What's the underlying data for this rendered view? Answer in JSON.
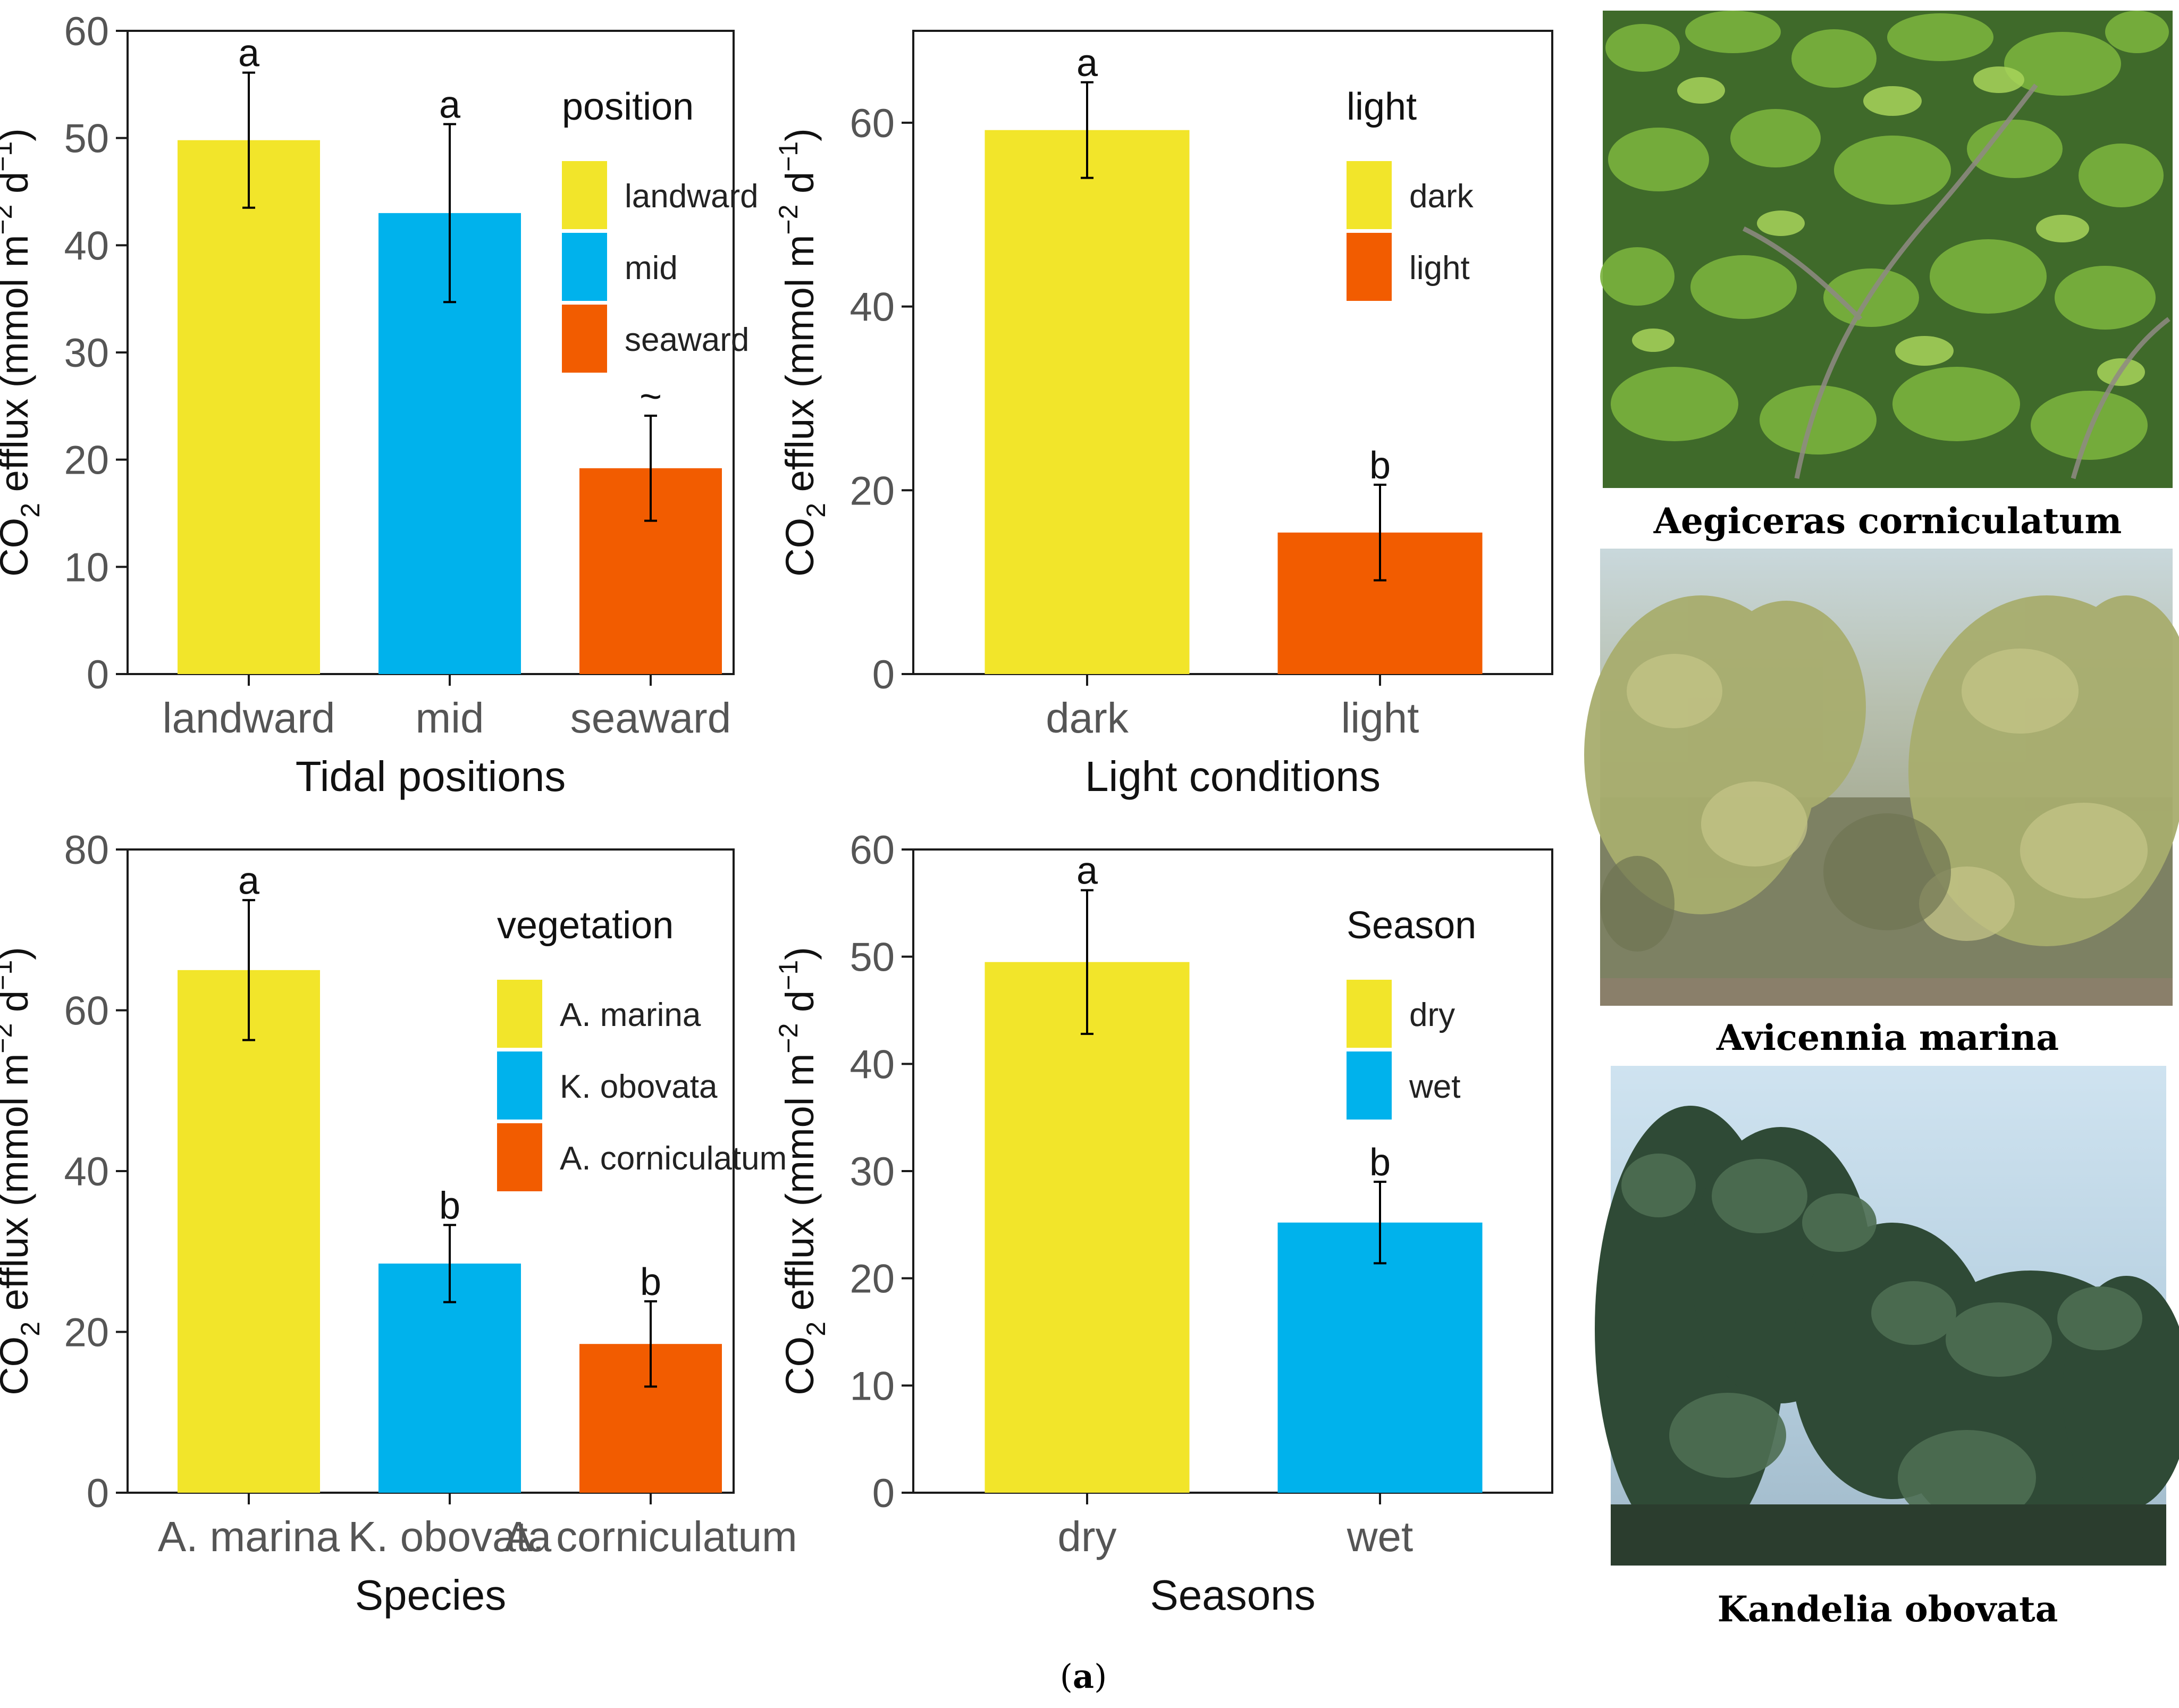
{
  "colors": {
    "yellow": "#F2E52A",
    "blue": "#00B2EC",
    "orange": "#F25C00"
  },
  "y_axis_title": {
    "prefix": "CO",
    "subscript": "2",
    "text": " efflux (mmol m",
    "exp1": "−2",
    "mid": " d",
    "exp2": "−1",
    "suffix": ")"
  },
  "chart_data": [
    {
      "type": "bar",
      "xlabel": "Tidal positions",
      "categories": [
        "landward",
        "mid",
        "seaward"
      ],
      "values": [
        49.8,
        43.0,
        19.2
      ],
      "errors": [
        6.3,
        8.3,
        4.9
      ],
      "letters": [
        "a",
        "a",
        "~"
      ],
      "colors": [
        "#F2E52A",
        "#00B2EC",
        "#F25C00"
      ],
      "ylim": [
        0,
        60
      ],
      "yticks": [
        0,
        10,
        20,
        30,
        40,
        50,
        60
      ],
      "legend": {
        "title": "position",
        "entries": [
          "landward",
          "mid",
          "seaward"
        ],
        "placement": "top-right"
      }
    },
    {
      "type": "bar",
      "xlabel": "Light conditions",
      "categories": [
        "dark",
        "light"
      ],
      "values": [
        59.2,
        15.4
      ],
      "errors": [
        5.2,
        5.2
      ],
      "letters": [
        "a",
        "b"
      ],
      "colors": [
        "#F2E52A",
        "#F25C00"
      ],
      "ylim": [
        0,
        70
      ],
      "yticks": [
        0,
        20,
        40,
        60
      ],
      "legend": {
        "title": "light",
        "entries": [
          "dark",
          "light"
        ],
        "placement": "top-right"
      }
    },
    {
      "type": "bar",
      "xlabel": "Species",
      "categories": [
        "A. marina",
        "K. obovata",
        "A. corniculatum"
      ],
      "values": [
        65.0,
        28.5,
        18.5
      ],
      "errors": [
        8.7,
        4.8,
        5.3
      ],
      "letters": [
        "a",
        "b",
        "b"
      ],
      "colors": [
        "#F2E52A",
        "#00B2EC",
        "#F25C00"
      ],
      "ylim": [
        0,
        80
      ],
      "yticks": [
        0,
        20,
        40,
        60,
        80
      ],
      "legend": {
        "title": "vegetation",
        "entries": [
          "A. marina",
          "K. obovata",
          "A. corniculatum"
        ],
        "placement": "top-right"
      }
    },
    {
      "type": "bar",
      "xlabel": "Seasons",
      "categories": [
        "dry",
        "wet"
      ],
      "values": [
        49.5,
        25.2
      ],
      "errors": [
        6.7,
        3.8
      ],
      "letters": [
        "a",
        "b"
      ],
      "colors": [
        "#F2E52A",
        "#00B2EC"
      ],
      "ylim": [
        0,
        60
      ],
      "yticks": [
        0,
        10,
        20,
        30,
        40,
        50,
        60
      ],
      "legend": {
        "title": "Season",
        "entries": [
          "dry",
          "wet"
        ],
        "placement": "top-right"
      }
    }
  ],
  "photos": [
    {
      "caption": "Aegiceras corniculatum",
      "image": "mangrove-photo"
    },
    {
      "caption": "Avicennia marina",
      "image": "mangrove-photo"
    },
    {
      "caption": "Kandelia obovata",
      "image": "mangrove-photo"
    }
  ],
  "panel_label": {
    "letter": "a"
  }
}
